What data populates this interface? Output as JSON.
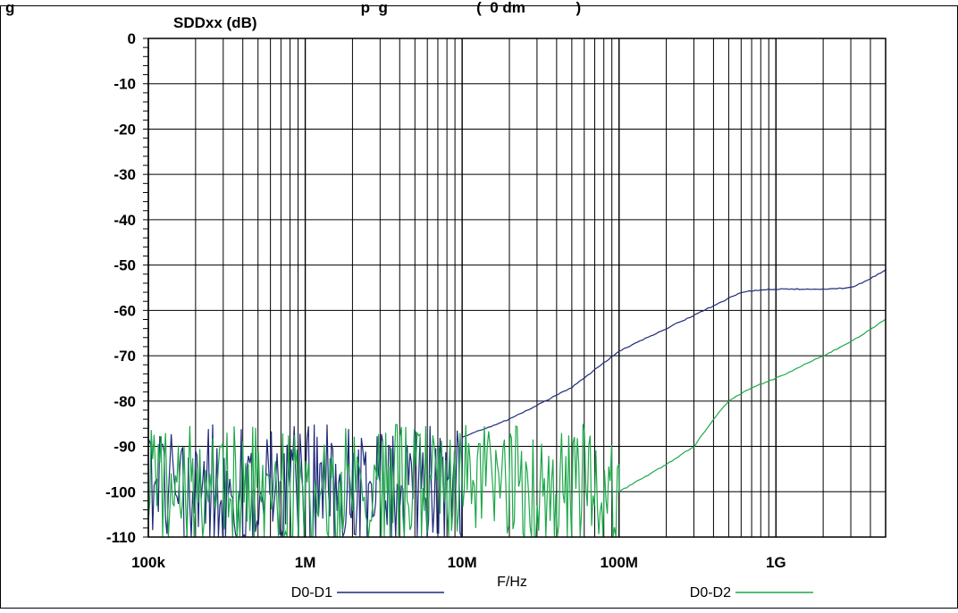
{
  "header_text": "g                                                                                  p  g                     (  0 dm            )",
  "chart_data": {
    "type": "line",
    "ylabel": "SDDxx (dB)",
    "xlabel": "F/Hz",
    "x_scale": "log",
    "xlim_hz": [
      100000,
      5000000000
    ],
    "ylim": [
      -110,
      0
    ],
    "grid": true,
    "x_ticks": [
      {
        "value": 100000,
        "label": "100k"
      },
      {
        "value": 1000000,
        "label": "1M"
      },
      {
        "value": 10000000,
        "label": "10M"
      },
      {
        "value": 100000000,
        "label": "100M"
      },
      {
        "value": 1000000000,
        "label": "1G"
      }
    ],
    "y_ticks": [
      0,
      -10,
      -20,
      -30,
      -40,
      -50,
      -60,
      -70,
      -80,
      -90,
      -100,
      -110
    ],
    "legend_position": "bottom",
    "series": [
      {
        "name": "D0-D1",
        "color": "#1f2a7a",
        "noise_region": {
          "x_from_hz": 100000,
          "x_to_hz": 10000000,
          "y_min": -110,
          "y_max": -85
        },
        "points": [
          {
            "x": 10000000,
            "y": -88
          },
          {
            "x": 20000000,
            "y": -84
          },
          {
            "x": 50000000,
            "y": -77
          },
          {
            "x": 100000000,
            "y": -69
          },
          {
            "x": 200000000,
            "y": -64
          },
          {
            "x": 400000000,
            "y": -59
          },
          {
            "x": 600000000,
            "y": -56
          },
          {
            "x": 800000000,
            "y": -55.5
          },
          {
            "x": 1000000000,
            "y": -55.3
          },
          {
            "x": 2000000000,
            "y": -55.3
          },
          {
            "x": 3000000000,
            "y": -55
          },
          {
            "x": 4000000000,
            "y": -53
          },
          {
            "x": 5000000000,
            "y": -51
          }
        ]
      },
      {
        "name": "D0-D2",
        "color": "#1ea84a",
        "noise_region": {
          "x_from_hz": 100000,
          "x_to_hz": 100000000,
          "y_min": -110,
          "y_max": -85
        },
        "points": [
          {
            "x": 100000000,
            "y": -100
          },
          {
            "x": 200000000,
            "y": -94
          },
          {
            "x": 300000000,
            "y": -90
          },
          {
            "x": 400000000,
            "y": -84
          },
          {
            "x": 500000000,
            "y": -80
          },
          {
            "x": 700000000,
            "y": -77
          },
          {
            "x": 1000000000,
            "y": -75
          },
          {
            "x": 2000000000,
            "y": -70
          },
          {
            "x": 3000000000,
            "y": -67
          },
          {
            "x": 5000000000,
            "y": -62
          }
        ]
      }
    ]
  }
}
